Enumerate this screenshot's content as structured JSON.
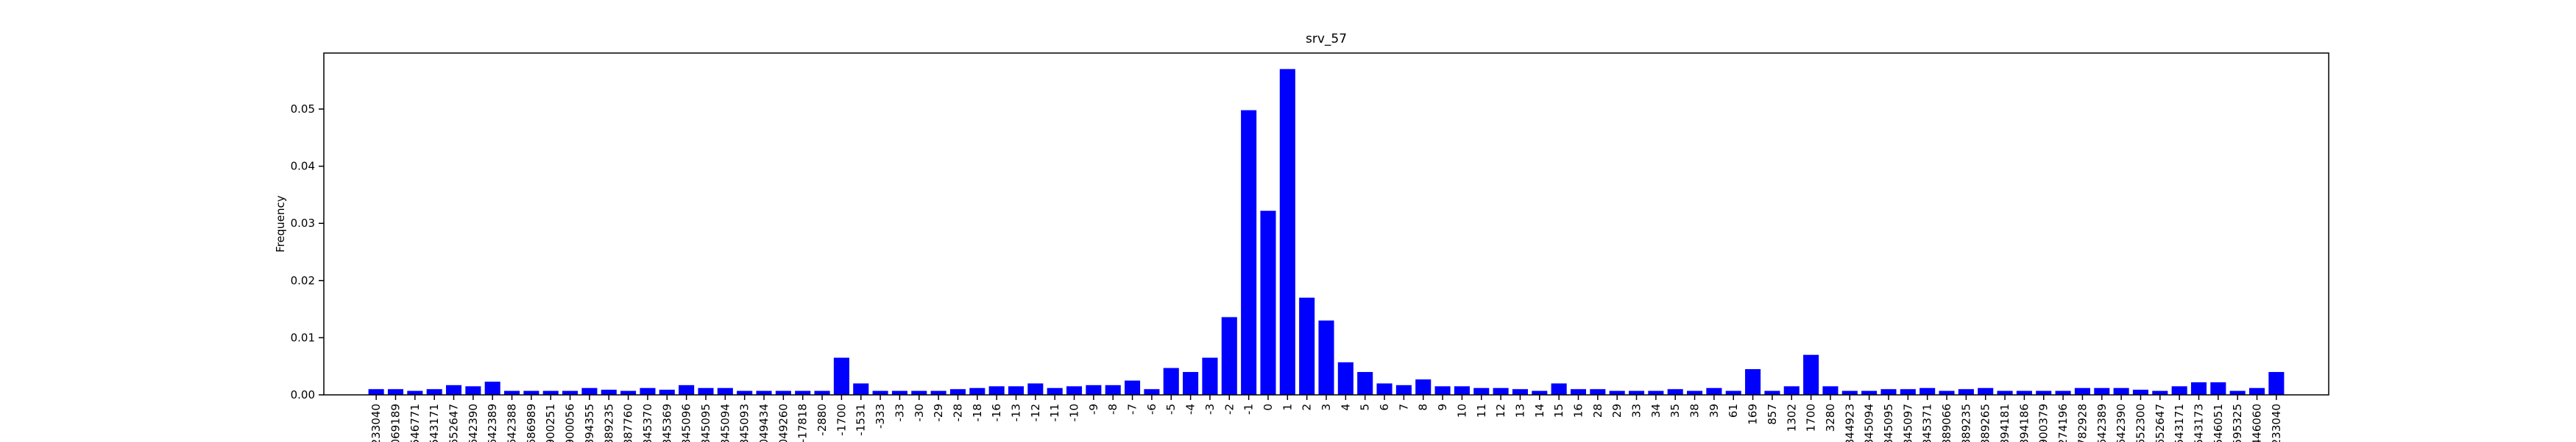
{
  "chart_data": {
    "type": "bar",
    "title": "srv_57",
    "y_label": "Frequency",
    "color": "#0000ff",
    "categories": [
      "-233040",
      "-069189",
      "-546771",
      "-543171",
      "-652647",
      "-642390",
      "-642389",
      "-642388",
      "-686989",
      "-900251",
      "-900056",
      "-894355",
      "-889235",
      "-887760",
      "-845370",
      "-845369",
      "-845096",
      "-845095",
      "-845094",
      "-845093",
      "-049434",
      "-049260",
      "-17818",
      "-2880",
      "-1700",
      "-1531",
      "-333",
      "-33",
      "-30",
      "-29",
      "-28",
      "-18",
      "-16",
      "-13",
      "-12",
      "-11",
      "-10",
      "-9",
      "-8",
      "-7",
      "-6",
      "-5",
      "-4",
      "-3",
      "-2",
      "-1",
      "0",
      "1",
      "2",
      "3",
      "4",
      "5",
      "6",
      "7",
      "8",
      "9",
      "10",
      "11",
      "12",
      "13",
      "14",
      "15",
      "16",
      "28",
      "29",
      "33",
      "34",
      "35",
      "38",
      "39",
      "61",
      "169",
      "857",
      "1302",
      "1700",
      "3280",
      "844923",
      "845094",
      "845095",
      "845097",
      "845371",
      "889066",
      "889235",
      "889265",
      "894181",
      "894186",
      "900379",
      "274196",
      "782928",
      "642389",
      "642390",
      "652300",
      "652647",
      "543171",
      "543173",
      "546051",
      "595325",
      "446060",
      "233040"
    ],
    "values": [
      0.001,
      0.001,
      0.0007,
      0.001,
      0.0017,
      0.0015,
      0.0023,
      0.0007,
      0.0007,
      0.0007,
      0.0007,
      0.0012,
      0.0009,
      0.0007,
      0.0012,
      0.0009,
      0.0017,
      0.0012,
      0.0012,
      0.0007,
      0.0007,
      0.0007,
      0.0007,
      0.0007,
      0.0065,
      0.002,
      0.0007,
      0.0007,
      0.0007,
      0.0007,
      0.001,
      0.0012,
      0.0015,
      0.0015,
      0.002,
      0.0012,
      0.0015,
      0.0017,
      0.0017,
      0.0025,
      0.001,
      0.0047,
      0.004,
      0.0065,
      0.0136,
      0.0498,
      0.0322,
      0.057,
      0.017,
      0.013,
      0.0057,
      0.004,
      0.002,
      0.0017,
      0.0027,
      0.0015,
      0.0015,
      0.0012,
      0.0012,
      0.001,
      0.0007,
      0.002,
      0.001,
      0.001,
      0.0007,
      0.0007,
      0.0007,
      0.001,
      0.0007,
      0.0012,
      0.0007,
      0.0045,
      0.0007,
      0.0015,
      0.007,
      0.0015,
      0.0007,
      0.0007,
      0.001,
      0.001,
      0.0012,
      0.0007,
      0.001,
      0.0012,
      0.0007,
      0.0007,
      0.0007,
      0.0007,
      0.0012,
      0.0012,
      0.0012,
      0.0009,
      0.0007,
      0.0015,
      0.0022,
      0.0022,
      0.0007,
      0.0012,
      0.004
    ],
    "ylim": [
      0,
      0.0598
    ],
    "yticks": [
      {
        "value": 0,
        "label": "0.00"
      },
      {
        "value": 0.01,
        "label": "0.01"
      },
      {
        "value": 0.02,
        "label": "0.02"
      },
      {
        "value": 0.03,
        "label": "0.03"
      },
      {
        "value": 0.04,
        "label": "0.04"
      },
      {
        "value": 0.05,
        "label": "0.05"
      }
    ],
    "grid": false
  }
}
